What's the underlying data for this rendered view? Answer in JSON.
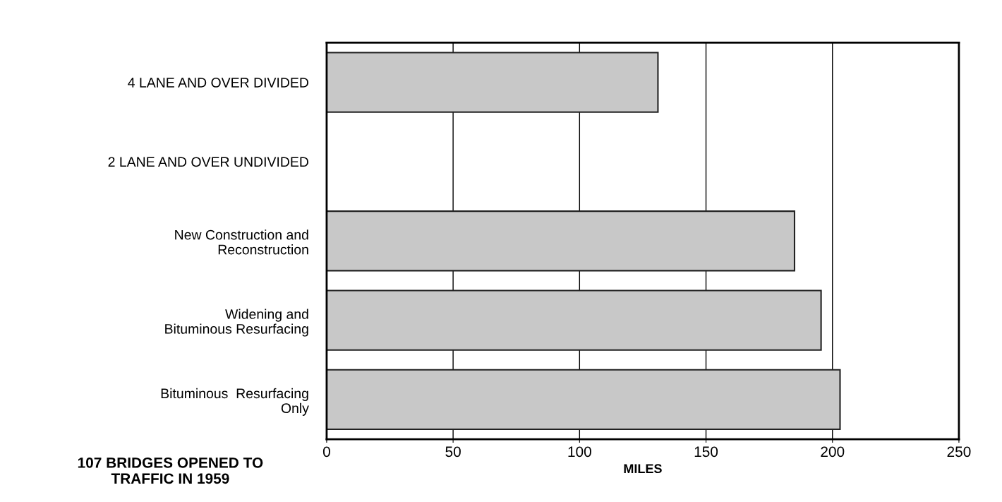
{
  "chart_data": {
    "type": "bar",
    "orientation": "horizontal",
    "xlabel": "MILES",
    "categories": [
      "4 LANE AND OVER DIVIDED",
      "2 LANE AND OVER UNDIVIDED",
      "New Construction and\nReconstruction",
      "Widening and\nBituminous Resurfacing",
      "Bituminous  Resurfacing\nOnly"
    ],
    "values": [
      131,
      null,
      185,
      195.5,
      203
    ],
    "color": "#c8c8c8",
    "xlim": [
      0,
      250
    ],
    "xticks": [
      0,
      50,
      100,
      150,
      200,
      250
    ],
    "grid": "x",
    "annotations": [
      "107 BRIDGES OPENED TO\nTRAFFIC IN 1959"
    ]
  }
}
